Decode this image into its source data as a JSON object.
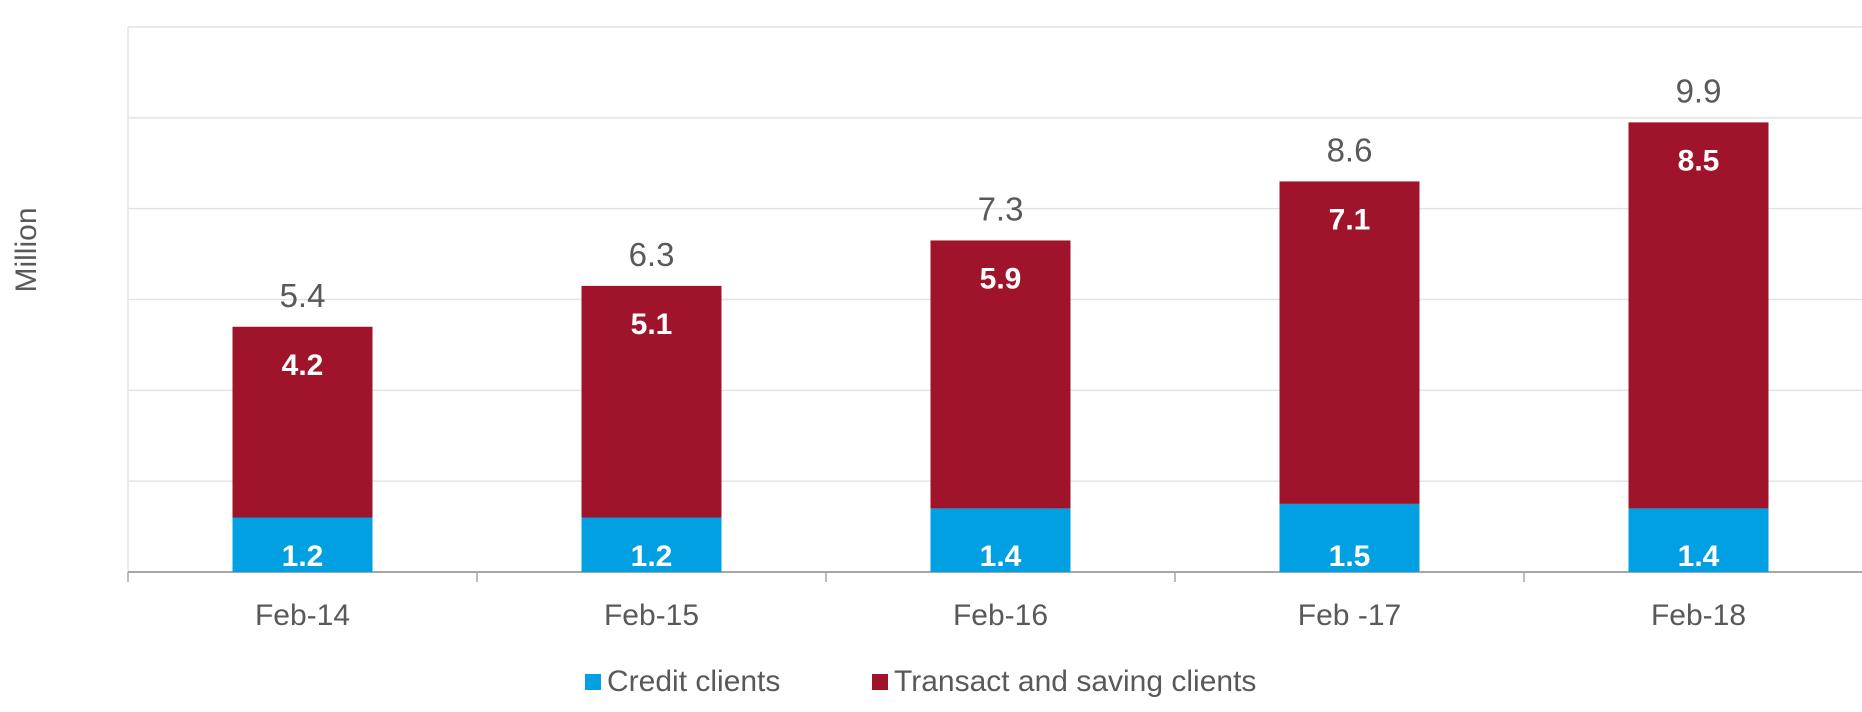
{
  "chart_data": {
    "type": "bar",
    "stacked": true,
    "ylabel": "Million",
    "xlabel": "",
    "categories": [
      "Feb-14",
      "Feb-15",
      "Feb-16",
      "Feb -17",
      "Feb-18"
    ],
    "series": [
      {
        "name": "Credit clients",
        "values": [
          1.2,
          1.2,
          1.4,
          1.5,
          1.4
        ],
        "color": "#00A0E3"
      },
      {
        "name": "Transact and saving clients",
        "values": [
          4.2,
          5.1,
          5.9,
          7.1,
          8.5
        ],
        "color": "#A0142B"
      }
    ],
    "totals": [
      5.4,
      6.3,
      7.3,
      8.6,
      9.9
    ],
    "ylim": [
      0,
      12
    ],
    "grid": true,
    "y_tick_labels_shown": false,
    "legend_position": "bottom"
  }
}
